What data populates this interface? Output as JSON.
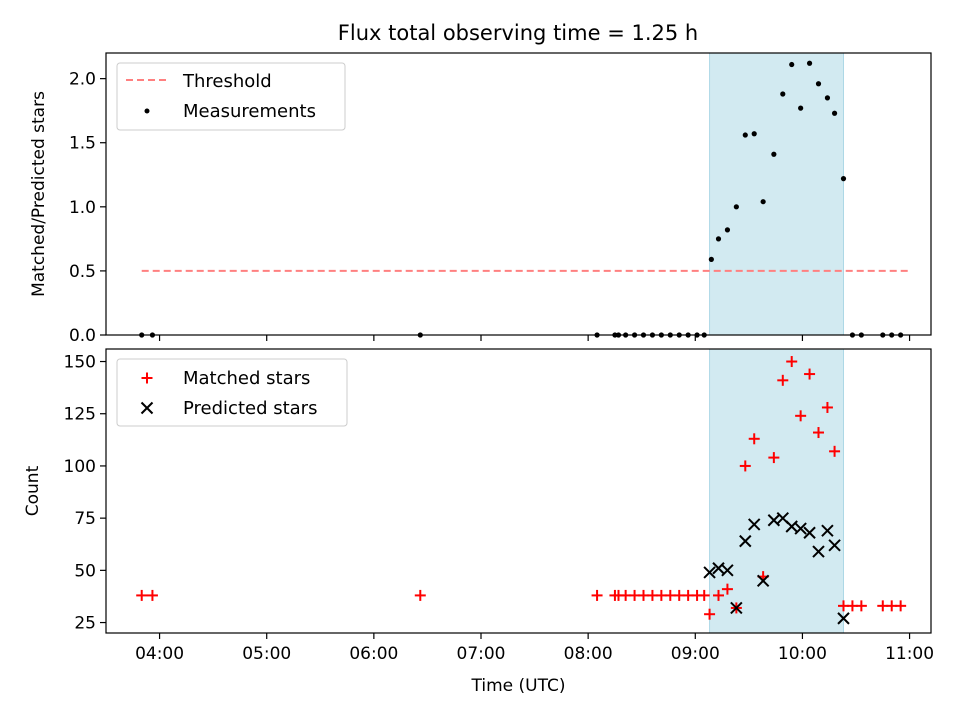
{
  "figure_title": "Flux total observing time = 1.25 h",
  "colors": {
    "threshold": "#ff8080",
    "measurement": "#000000",
    "matched": "#ff0000",
    "predicted": "#000000",
    "span_fill": "#add8e6"
  },
  "chart_data": [
    {
      "type": "scatter",
      "name": "ratio-panel",
      "ylabel": "Matched/Predicted stars",
      "ylim": [
        0,
        2.2
      ],
      "yticks": [
        0.0,
        0.5,
        1.0,
        1.5,
        2.0
      ],
      "ytick_labels": [
        "0.0",
        "0.5",
        "1.0",
        "1.5",
        "2.0"
      ],
      "xlim_minutes": [
        210,
        672
      ],
      "highlight_span_minutes": [
        548,
        623
      ],
      "legend": {
        "position": "upper-left",
        "entries": [
          "Threshold",
          "Measurements"
        ]
      },
      "threshold": {
        "name": "Threshold",
        "value": 0.5,
        "x_range_minutes": [
          230,
          659
        ]
      },
      "series": [
        {
          "name": "Measurements",
          "x_minutes": [
            230,
            236,
            386,
            485,
            495,
            497,
            501,
            506,
            511,
            516,
            521,
            526,
            531,
            536,
            541,
            545,
            549,
            553,
            558,
            563,
            568,
            573,
            578,
            584,
            589,
            594,
            599,
            604,
            609,
            614,
            618,
            623,
            628,
            633,
            645,
            650,
            655
          ],
          "values": [
            0,
            0,
            0,
            0,
            0,
            0,
            0,
            0,
            0,
            0,
            0,
            0,
            0,
            0,
            0,
            0,
            0.59,
            0.75,
            0.82,
            1.0,
            1.56,
            1.57,
            1.04,
            1.41,
            1.88,
            2.11,
            1.77,
            2.12,
            1.96,
            1.85,
            1.73,
            1.22,
            0,
            0,
            0,
            0,
            0
          ]
        }
      ]
    },
    {
      "type": "scatter",
      "name": "count-panel",
      "xlabel": "Time (UTC)",
      "ylabel": "Count",
      "ylim": [
        20,
        156
      ],
      "yticks": [
        25,
        50,
        75,
        100,
        125,
        150
      ],
      "ytick_labels": [
        "25",
        "50",
        "75",
        "100",
        "125",
        "150"
      ],
      "xlim_minutes": [
        210,
        672
      ],
      "xticks_minutes": [
        240,
        300,
        360,
        420,
        480,
        540,
        600,
        660
      ],
      "xtick_labels": [
        "04:00",
        "05:00",
        "06:00",
        "07:00",
        "08:00",
        "09:00",
        "10:00",
        "11:00"
      ],
      "highlight_span_minutes": [
        548,
        623
      ],
      "legend": {
        "position": "upper-left",
        "entries": [
          "Matched stars",
          "Predicted stars"
        ]
      },
      "series": [
        {
          "name": "Matched stars",
          "marker": "plus",
          "x_minutes": [
            230,
            236,
            386,
            485,
            495,
            497,
            501,
            506,
            511,
            516,
            521,
            526,
            531,
            536,
            541,
            545,
            548,
            553,
            558,
            563,
            568,
            573,
            578,
            584,
            589,
            594,
            599,
            604,
            609,
            614,
            618,
            623,
            628,
            633,
            645,
            650,
            655
          ],
          "values": [
            38,
            38,
            38,
            38,
            38,
            38,
            38,
            38,
            38,
            38,
            38,
            38,
            38,
            38,
            38,
            38,
            29,
            38,
            41,
            32,
            100,
            113,
            47,
            104,
            141,
            150,
            124,
            144,
            116,
            128,
            107,
            33,
            33,
            33,
            33,
            33,
            33
          ]
        },
        {
          "name": "Predicted stars",
          "marker": "x",
          "x_minutes": [
            548,
            553,
            558,
            563,
            568,
            573,
            578,
            584,
            589,
            594,
            599,
            604,
            609,
            614,
            618,
            623
          ],
          "values": [
            49,
            51,
            50,
            32,
            64,
            72,
            45,
            74,
            75,
            71,
            70,
            68,
            59,
            69,
            62,
            27
          ]
        }
      ]
    }
  ]
}
